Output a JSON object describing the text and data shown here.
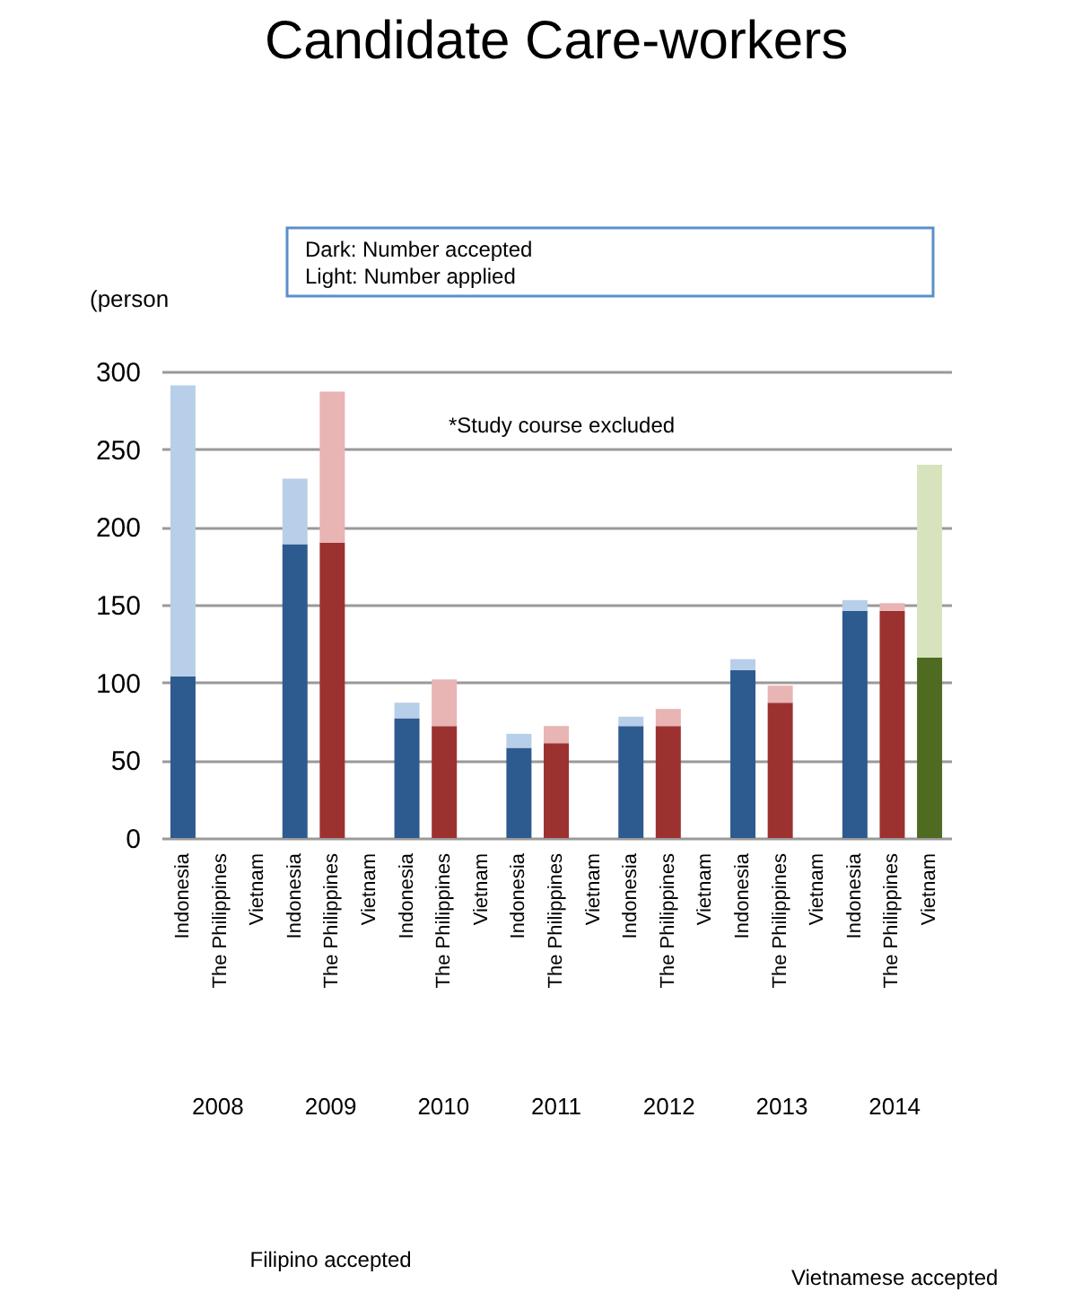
{
  "chart_data": {
    "type": "bar",
    "title": "Candidate Care-workers",
    "ylabel": "(person",
    "categories": [
      "Indonesia",
      "The Philippines",
      "Vietnam",
      "Indonesia",
      "The Philippines",
      "Vietnam",
      "Indonesia",
      "The Philippines",
      "Vietnam",
      "Indonesia",
      "The Philippines",
      "Vietnam",
      "Indonesia",
      "The Philippines",
      "Vietnam",
      "Indonesia",
      "The Philippines",
      "Vietnam",
      "Indonesia",
      "The Philippines",
      "Vietnam"
    ],
    "stacked": true,
    "series": [
      {
        "colors": [
          "#2e5b8f",
          "#9c3230",
          "#4f6b22",
          "#2e5b8f",
          "#9c3230",
          "#4f6b22",
          "#2e5b8f",
          "#9c3230",
          "#4f6b22",
          "#2e5b8f",
          "#9c3230",
          "#4f6b22",
          "#2e5b8f",
          "#9c3230",
          "#4f6b22",
          "#2e5b8f",
          "#9c3230",
          "#4f6b22",
          "#2e5b8f",
          "#9c3230",
          "#4f6b22"
        ],
        "values": [
          104,
          null,
          null,
          189,
          190,
          null,
          77,
          72,
          null,
          58,
          61,
          null,
          72,
          72,
          null,
          108,
          87,
          null,
          146,
          146,
          116
        ]
      },
      {
        "colors": [
          "#b8cfe9",
          "#e8b4b4",
          "#d6e3bc",
          "#b8cfe9",
          "#e8b4b4",
          "#d6e3bc",
          "#b8cfe9",
          "#e8b4b4",
          "#d6e3bc",
          "#b8cfe9",
          "#e8b4b4",
          "#d6e3bc",
          "#b8cfe9",
          "#e8b4b4",
          "#d6e3bc",
          "#b8cfe9",
          "#e8b4b4",
          "#d6e3bc",
          "#b8cfe9",
          "#e8b4b4",
          "#d6e3bc"
        ],
        "values": [
          187,
          null,
          null,
          42,
          97,
          null,
          10,
          30,
          null,
          9,
          11,
          null,
          6,
          11,
          null,
          7,
          11,
          null,
          7,
          5,
          124
        ]
      }
    ],
    "ylim": [
      0,
      300
    ],
    "yticks": [
      0,
      50,
      100,
      150,
      200,
      250,
      300
    ],
    "grid": "y",
    "annotations": [
      "Dark: Number accepted",
      "Light: Number applied",
      "*Study course excluded",
      "2008",
      "2009",
      "2010",
      "2011",
      "2012",
      "2013",
      "2014",
      "Filipino accepted",
      "Vietnamese accepted"
    ]
  }
}
